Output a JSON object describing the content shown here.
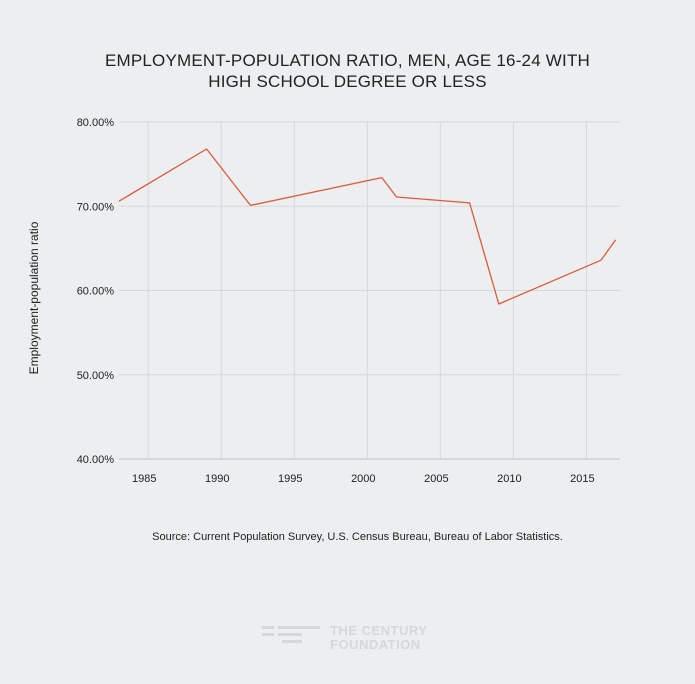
{
  "title_lines": [
    "EMPLOYMENT-POPULATION RATIO, MEN, AGE 16-24 WITH",
    "HIGH SCHOOL DEGREE OR LESS"
  ],
  "source": "Source: Current Population Survey, U.S. Census Bureau, Bureau of Labor Statistics.",
  "logo": {
    "line1": "THE CENTURY",
    "line2": "FOUNDATION"
  },
  "colors": {
    "line": "#e05a3a",
    "grid": "#d6d8da",
    "background": "#eceeef"
  },
  "chart_data": {
    "type": "line",
    "title": "EMPLOYMENT-POPULATION RATIO, MEN, AGE 16-24 WITH HIGH SCHOOL DEGREE OR LESS",
    "xlabel": "",
    "ylabel": "Employment-population ratio",
    "xlim": [
      1983,
      2017.3
    ],
    "ylim": [
      40,
      80
    ],
    "x_ticks": [
      1985,
      1990,
      1995,
      2000,
      2005,
      2010,
      2015
    ],
    "y_ticks": [
      40,
      50,
      60,
      70,
      80
    ],
    "y_tick_labels": [
      "40.00%",
      "50.00%",
      "60.00%",
      "70.00%",
      "80.00%"
    ],
    "grid": true,
    "series": [
      {
        "name": "Employment-population ratio",
        "x": [
          1983,
          1989,
          1992,
          2001,
          2002,
          2007,
          2009,
          2016,
          2017
        ],
        "values": [
          70.6,
          76.8,
          70.1,
          73.4,
          71.1,
          70.4,
          58.4,
          63.6,
          66.0
        ]
      }
    ]
  }
}
